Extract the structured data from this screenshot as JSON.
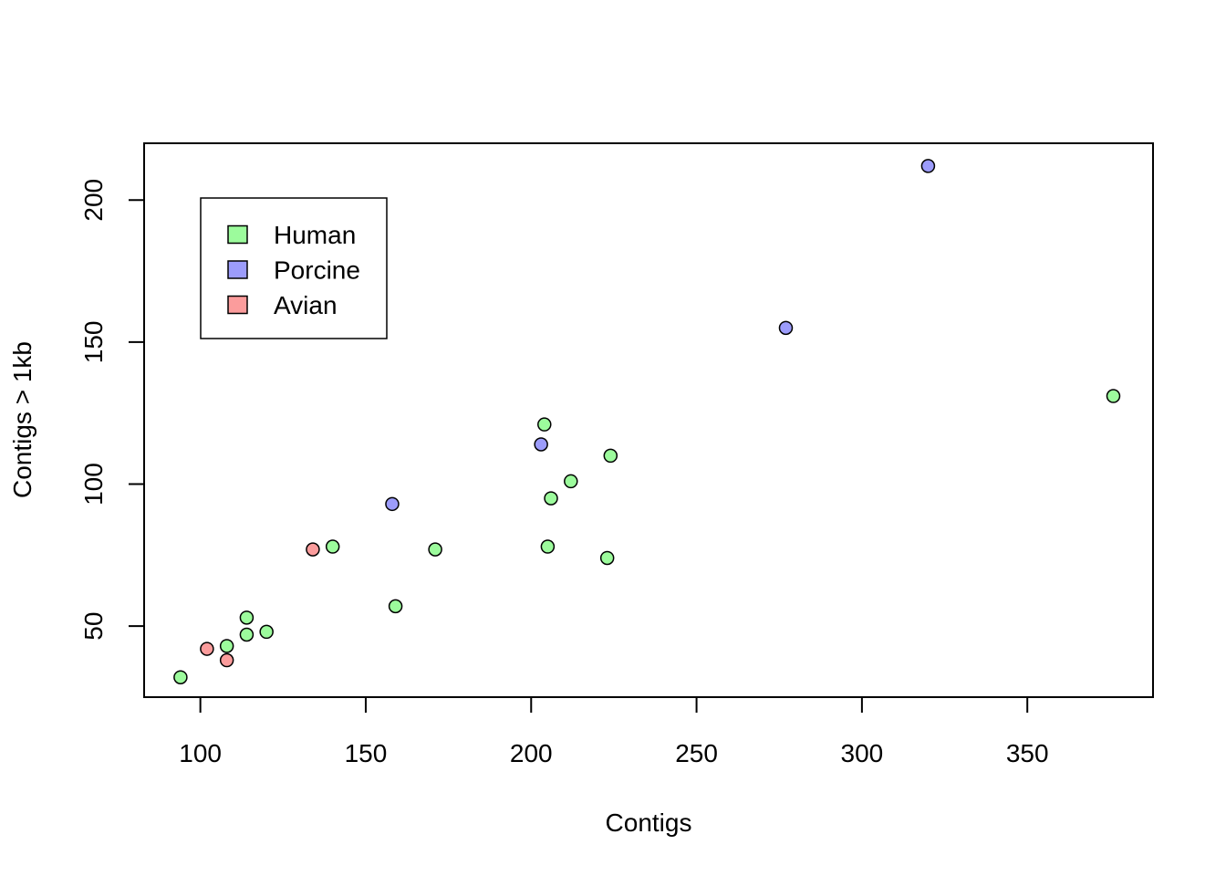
{
  "chart_data": {
    "type": "scatter",
    "title": "",
    "xlabel": "Contigs",
    "ylabel": "Contigs > 1kb",
    "xlim": [
      83,
      388
    ],
    "ylim": [
      25,
      220
    ],
    "xticks": [
      100,
      150,
      200,
      250,
      300,
      350
    ],
    "yticks": [
      50,
      100,
      150,
      200
    ],
    "xtick_labels": [
      "100",
      "150",
      "200",
      "250",
      "300",
      "350"
    ],
    "ytick_labels": [
      "50",
      "100",
      "150",
      "200"
    ],
    "grid": false,
    "legend_position": "top-left",
    "series": [
      {
        "name": "Human",
        "color": "#9cfb9c",
        "points": [
          {
            "x": 94,
            "y": 32
          },
          {
            "x": 108,
            "y": 43
          },
          {
            "x": 114,
            "y": 53
          },
          {
            "x": 114,
            "y": 47
          },
          {
            "x": 120,
            "y": 48
          },
          {
            "x": 140,
            "y": 78
          },
          {
            "x": 159,
            "y": 57
          },
          {
            "x": 171,
            "y": 77
          },
          {
            "x": 204,
            "y": 121
          },
          {
            "x": 205,
            "y": 78
          },
          {
            "x": 206,
            "y": 95
          },
          {
            "x": 212,
            "y": 101
          },
          {
            "x": 223,
            "y": 74
          },
          {
            "x": 224,
            "y": 110
          },
          {
            "x": 376,
            "y": 131
          }
        ]
      },
      {
        "name": "Porcine",
        "color": "#9c9cfb",
        "points": [
          {
            "x": 158,
            "y": 93
          },
          {
            "x": 203,
            "y": 114
          },
          {
            "x": 277,
            "y": 155
          },
          {
            "x": 320,
            "y": 212
          }
        ]
      },
      {
        "name": "Avian",
        "color": "#fb9c9c",
        "points": [
          {
            "x": 102,
            "y": 42
          },
          {
            "x": 108,
            "y": 38
          },
          {
            "x": 134,
            "y": 77
          }
        ]
      }
    ]
  }
}
